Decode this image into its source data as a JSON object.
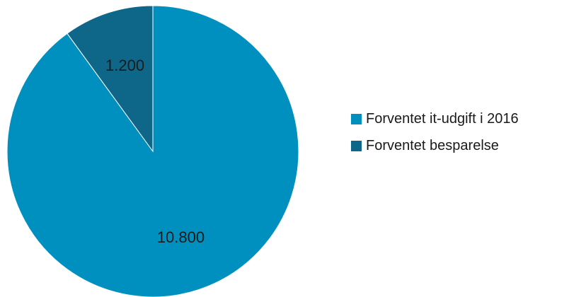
{
  "chart_data": {
    "type": "pie",
    "title": "",
    "start_angle_deg": 0,
    "direction": "clockwise",
    "legend_position": "right",
    "slices": [
      {
        "label": "Forventet it-udgift i 2016",
        "value": 10800,
        "display": "10.800",
        "color": "#0090c0"
      },
      {
        "label": "Forventet besparelse",
        "value": 1200,
        "display": "1.200",
        "color": "#0e6688"
      }
    ]
  }
}
